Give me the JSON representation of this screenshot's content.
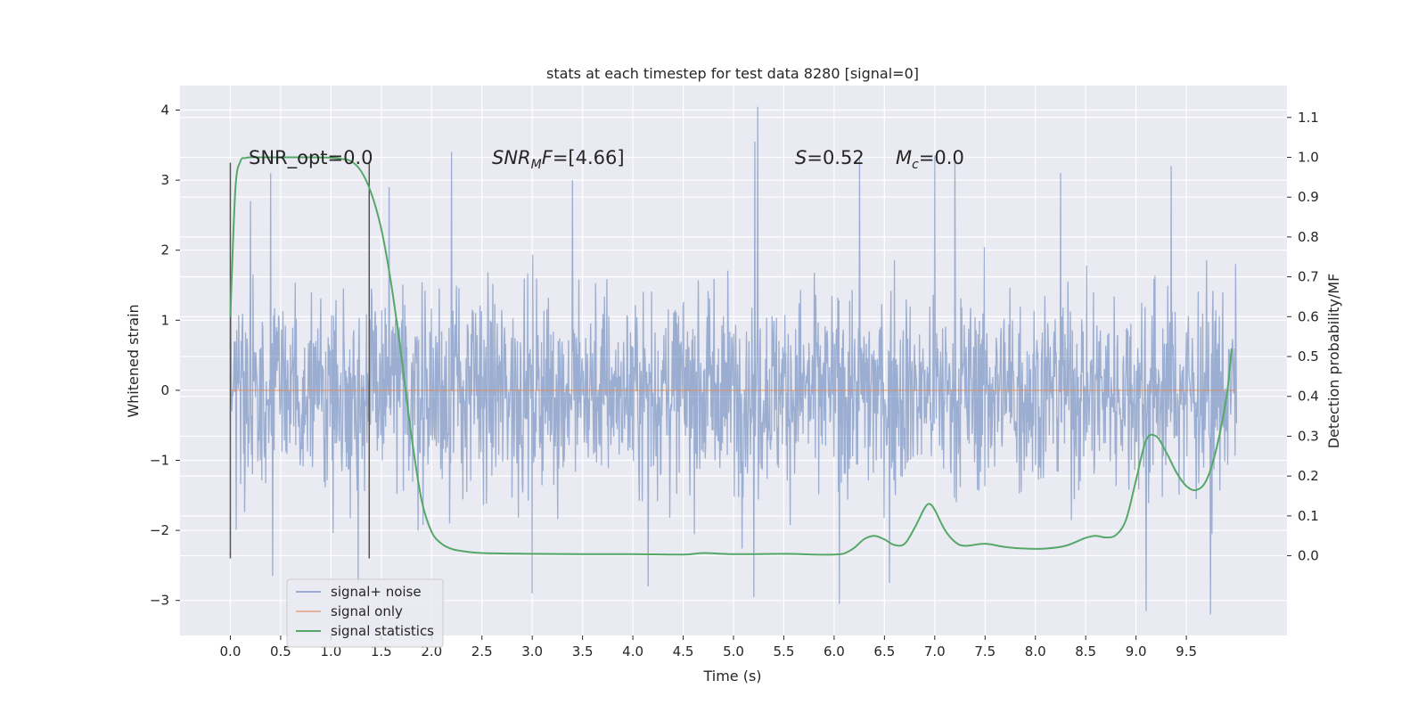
{
  "chart_data": {
    "type": "line",
    "title": "stats at each timestep for test data 8280 [signal=0]",
    "xlabel": "Time (s)",
    "ylabel": "Whitened strain",
    "y2label": "Detection probability/MF",
    "xlim": [
      -0.5,
      10.5
    ],
    "ylim": [
      -3.5,
      4.35
    ],
    "y2lim": [
      -0.2,
      1.18
    ],
    "x_ticks": [
      0.0,
      0.5,
      1.0,
      1.5,
      2.0,
      2.5,
      3.0,
      3.5,
      4.0,
      4.5,
      5.0,
      5.5,
      6.0,
      6.5,
      7.0,
      7.5,
      8.0,
      8.5,
      9.0,
      9.5
    ],
    "x_tick_labels": [
      "0.0",
      "0.5",
      "1.0",
      "1.5",
      "2.0",
      "2.5",
      "3.0",
      "3.5",
      "4.0",
      "4.5",
      "5.0",
      "5.5",
      "6.0",
      "6.5",
      "7.0",
      "7.5",
      "8.0",
      "8.5",
      "9.0",
      "9.5"
    ],
    "y_ticks": [
      -3,
      -2,
      -1,
      0,
      1,
      2,
      3,
      4
    ],
    "y_tick_labels": [
      "−3",
      "−2",
      "−1",
      "0",
      "1",
      "2",
      "3",
      "4"
    ],
    "y2_ticks": [
      0.0,
      0.1,
      0.2,
      0.3,
      0.4,
      0.5,
      0.6,
      0.7,
      0.8,
      0.9,
      1.0,
      1.1
    ],
    "y2_tick_labels": [
      "0.0",
      "0.1",
      "0.2",
      "0.3",
      "0.4",
      "0.5",
      "0.6",
      "0.7",
      "0.8",
      "0.9",
      "1.0",
      "1.1"
    ],
    "grid": true,
    "legend_placement": "lower-left",
    "colors": {
      "background": "#eaeaf2",
      "grid": "#ffffff",
      "noise": "#4c72b0",
      "signal": "#dd8452",
      "statistics": "#55a868",
      "marker": "#555555"
    },
    "series": [
      {
        "name": "signal+ noise",
        "axis": "left",
        "x_range": [
          0.0,
          9.999
        ],
        "n_samples": 2048,
        "y_max": 4.05,
        "y_min": -3.2,
        "note_peaks": [
          [
            0.2,
            2.7
          ],
          [
            0.4,
            3.1
          ],
          [
            1.58,
            2.9
          ],
          [
            2.2,
            3.4
          ],
          [
            3.4,
            3.0
          ],
          [
            5.24,
            4.05
          ],
          [
            5.21,
            3.55
          ],
          [
            6.25,
            3.3
          ],
          [
            7.0,
            3.35
          ],
          [
            7.2,
            3.3
          ],
          [
            8.25,
            3.1
          ],
          [
            9.35,
            3.2
          ]
        ],
        "note_troughs": [
          [
            0.42,
            -2.65
          ],
          [
            1.27,
            -2.75
          ],
          [
            3.0,
            -2.9
          ],
          [
            4.15,
            -2.8
          ],
          [
            5.2,
            -2.95
          ],
          [
            6.05,
            -3.05
          ],
          [
            6.55,
            -2.75
          ],
          [
            9.1,
            -3.15
          ],
          [
            9.74,
            -3.2
          ]
        ]
      },
      {
        "name": "signal only",
        "axis": "left",
        "x": [
          0.0,
          10.0
        ],
        "y": [
          0.0,
          0.0
        ]
      },
      {
        "name": "signal statistics",
        "axis": "right",
        "x": [
          0.0,
          0.05,
          0.1,
          0.15,
          0.2,
          0.3,
          0.5,
          0.8,
          1.0,
          1.1,
          1.2,
          1.3,
          1.4,
          1.5,
          1.6,
          1.7,
          1.8,
          1.9,
          2.0,
          2.1,
          2.2,
          2.3,
          2.5,
          3.0,
          3.5,
          4.0,
          4.5,
          4.7,
          5.0,
          5.5,
          5.8,
          6.0,
          6.1,
          6.2,
          6.3,
          6.4,
          6.5,
          6.6,
          6.7,
          6.8,
          6.9,
          6.95,
          7.0,
          7.1,
          7.2,
          7.3,
          7.5,
          7.7,
          7.9,
          8.1,
          8.3,
          8.5,
          8.6,
          8.7,
          8.8,
          8.9,
          9.0,
          9.1,
          9.2,
          9.3,
          9.4,
          9.5,
          9.6,
          9.7,
          9.8,
          9.9,
          9.95
        ],
        "y": [
          0.6,
          0.92,
          0.99,
          0.998,
          1.0,
          1.0,
          1.0,
          1.0,
          0.999,
          0.996,
          0.99,
          0.965,
          0.91,
          0.82,
          0.68,
          0.5,
          0.3,
          0.14,
          0.06,
          0.03,
          0.017,
          0.012,
          0.007,
          0.005,
          0.004,
          0.004,
          0.003,
          0.007,
          0.004,
          0.005,
          0.003,
          0.003,
          0.006,
          0.02,
          0.042,
          0.05,
          0.041,
          0.027,
          0.03,
          0.07,
          0.12,
          0.13,
          0.115,
          0.065,
          0.035,
          0.025,
          0.03,
          0.022,
          0.018,
          0.018,
          0.025,
          0.045,
          0.05,
          0.046,
          0.052,
          0.09,
          0.19,
          0.29,
          0.3,
          0.26,
          0.21,
          0.175,
          0.165,
          0.19,
          0.27,
          0.4,
          0.52
        ]
      }
    ],
    "vertical_markers": [
      {
        "x": 0.0,
        "y_range": [
          -2.4,
          3.25
        ]
      },
      {
        "x": 1.38,
        "y_range": [
          -2.4,
          3.25
        ]
      }
    ],
    "annotations": [
      {
        "text": "SNR_opt=0.0",
        "x": 0.2,
        "y": 3.22
      },
      {
        "text": "SNR_MF=[4.66]",
        "x": 2.6,
        "y": 3.22
      },
      {
        "text": "S=0.52",
        "x": 5.6,
        "y": 3.22
      },
      {
        "text": "M_c=0.0",
        "x": 6.6,
        "y": 3.22
      }
    ]
  },
  "text": {
    "title": "stats at each timestep for test data 8280 [signal=0]",
    "xlabel": "Time (s)",
    "ylabel": "Whitened strain",
    "y2label": "Detection probability/MF",
    "annot_snr_opt": "SNR_opt=0.0",
    "annot_snr_mf_main": "SNR",
    "annot_snr_mf_sub": "M",
    "annot_snr_mf_f": "F",
    "annot_snr_mf_val": "=[4.66]",
    "annot_s_sym": "S",
    "annot_s_val": "=0.52",
    "annot_mc_sym": "M",
    "annot_mc_sub": "c",
    "annot_mc_val": "=0.0",
    "legend": [
      "signal+ noise",
      "signal only",
      "signal statistics"
    ]
  }
}
